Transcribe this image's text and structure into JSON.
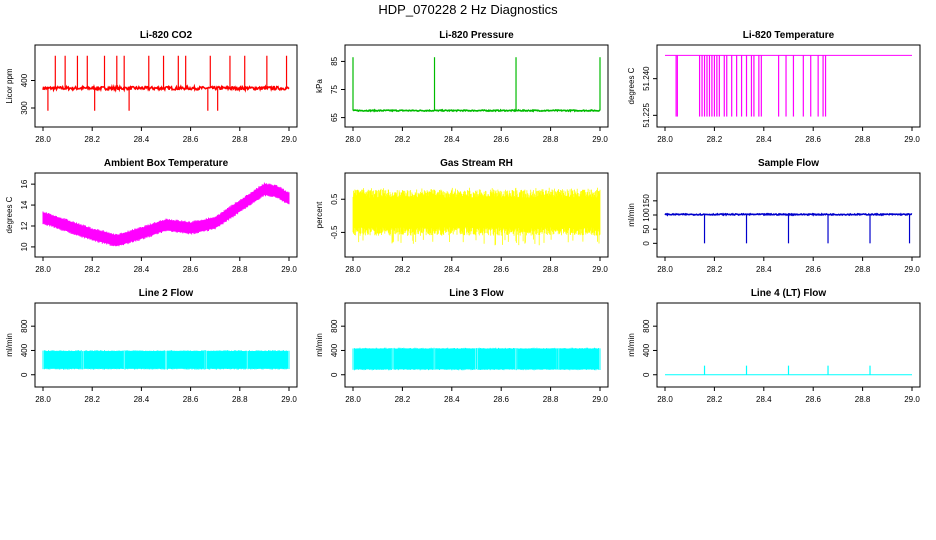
{
  "title": "HDP_070228 2 Hz Diagnostics",
  "colors": {
    "co2": "#ff0000",
    "pressure": "#00bb00",
    "temperature": "#ff00ff",
    "ambient": "#ff00ff",
    "rh": "#ffff00",
    "sample_flow": "#0000cc",
    "line2": "#00ffff",
    "line3": "#00ffff",
    "line4": "#00ffff"
  },
  "chart_data": [
    {
      "id": "co2",
      "type": "line",
      "title": "Li-820 CO2",
      "xlabel": "",
      "ylabel": "Licor ppm",
      "xlim": [
        28.0,
        29.0
      ],
      "ylim": [
        260,
        500
      ],
      "x_ticks": [
        "28.0",
        "28.2",
        "28.4",
        "28.6",
        "28.8",
        "29.0"
      ],
      "y_ticks": [
        "300",
        "400"
      ],
      "y_tick_values": [
        300,
        400
      ],
      "series": [
        {
          "name": "CO2",
          "baseline": 372,
          "noise": 6,
          "spikes_up_at": [
            28.05,
            28.09,
            28.14,
            28.18,
            28.25,
            28.3,
            28.33,
            28.43,
            28.49,
            28.55,
            28.58,
            28.68,
            28.76,
            28.82,
            28.91,
            28.99
          ],
          "spike_up_value": 490,
          "spikes_down_at": [
            28.02,
            28.21,
            28.35,
            28.67,
            28.71
          ],
          "spike_down_value": 290
        }
      ]
    },
    {
      "id": "pressure",
      "type": "line",
      "title": "Li-820 Pressure",
      "xlabel": "",
      "ylabel": "kPa",
      "xlim": [
        28.0,
        29.0
      ],
      "ylim": [
        64.5,
        88
      ],
      "x_ticks": [
        "28.0",
        "28.2",
        "28.4",
        "28.6",
        "28.8",
        "29.0"
      ],
      "y_ticks": [
        "65",
        "75",
        "85"
      ],
      "y_tick_values": [
        65,
        75,
        85
      ],
      "series": [
        {
          "name": "Pressure",
          "baseline": 67.5,
          "noise": 0.2,
          "spikes_up_at": [
            28.0,
            28.33,
            28.66,
            29.0
          ],
          "spike_up_value": 86.5
        }
      ]
    },
    {
      "id": "temperature",
      "type": "line",
      "title": "Li-820 Temperature",
      "xlabel": "",
      "ylabel": "degrees C",
      "xlim": [
        28.0,
        29.0
      ],
      "ylim": [
        51.2235,
        51.2505
      ],
      "x_ticks": [
        "28.0",
        "28.2",
        "28.4",
        "28.6",
        "28.8",
        "29.0"
      ],
      "y_ticks": [
        "51.225",
        "51.240"
      ],
      "y_tick_values": [
        51.225,
        51.24
      ],
      "series": [
        {
          "name": "Temperature",
          "baseline": 51.2495,
          "noise": 0,
          "spikes_down_at": [
            28.045,
            28.05,
            28.14,
            28.15,
            28.16,
            28.17,
            28.18,
            28.19,
            28.2,
            28.21,
            28.22,
            28.24,
            28.25,
            28.27,
            28.29,
            28.31,
            28.33,
            28.35,
            28.36,
            28.38,
            28.39,
            28.46,
            28.49,
            28.52,
            28.56,
            28.59,
            28.62,
            28.64,
            28.65
          ],
          "spike_down_value": 51.2245
        }
      ]
    },
    {
      "id": "ambient",
      "type": "line",
      "title": "Ambient Box Temperature",
      "xlabel": "",
      "ylabel": "degrees C",
      "xlim": [
        28.0,
        29.0
      ],
      "ylim": [
        9.8,
        16.3
      ],
      "x_ticks": [
        "28.0",
        "28.2",
        "28.4",
        "28.6",
        "28.8",
        "29.0"
      ],
      "y_ticks": [
        "10",
        "12",
        "14",
        "16"
      ],
      "y_tick_values": [
        10,
        12,
        14,
        16
      ],
      "series": [
        {
          "name": "Ambient",
          "band_width": 1.0,
          "x": [
            28.0,
            28.1,
            28.2,
            28.3,
            28.4,
            28.5,
            28.6,
            28.7,
            28.8,
            28.9,
            28.95,
            29.0
          ],
          "y": [
            12.8,
            12.0,
            11.2,
            10.6,
            11.3,
            12.1,
            11.8,
            12.3,
            13.9,
            15.5,
            15.3,
            14.6
          ]
        }
      ]
    },
    {
      "id": "rh",
      "type": "line",
      "title": "Gas Stream RH",
      "xlabel": "",
      "ylabel": "percent",
      "xlim": [
        28.0,
        29.0
      ],
      "ylim": [
        -1.0,
        1.05
      ],
      "x_ticks": [
        "28.0",
        "28.2",
        "28.4",
        "28.6",
        "28.8",
        "29.0"
      ],
      "y_ticks": [
        "-0.5",
        "0.5"
      ],
      "y_tick_values": [
        -0.5,
        0.5
      ],
      "series": [
        {
          "name": "RH",
          "dense_low": -0.35,
          "dense_high": 0.55,
          "extreme_low": -0.9,
          "extreme_high": 0.85
        }
      ]
    },
    {
      "id": "sample_flow",
      "type": "line",
      "title": "Sample Flow",
      "xlabel": "",
      "ylabel": "ml/min",
      "xlim": [
        28.0,
        29.0
      ],
      "ylim": [
        -20,
        220
      ],
      "x_ticks": [
        "28.0",
        "28.2",
        "28.4",
        "28.6",
        "28.8",
        "29.0"
      ],
      "y_ticks": [
        "0",
        "50",
        "100",
        "150"
      ],
      "y_tick_values": [
        0,
        50,
        100,
        150
      ],
      "series": [
        {
          "name": "Sample Flow",
          "baseline": 102,
          "noise": 2,
          "spikes_down_at": [
            28.16,
            28.33,
            28.5,
            28.66,
            28.83,
            28.99
          ],
          "spike_down_value": 0
        }
      ]
    },
    {
      "id": "line2",
      "type": "area",
      "title": "Line 2 Flow",
      "xlabel": "",
      "ylabel": "ml/min",
      "xlim": [
        28.0,
        29.0
      ],
      "ylim": [
        -70,
        1050
      ],
      "x_ticks": [
        "28.0",
        "28.2",
        "28.4",
        "28.6",
        "28.8",
        "29.0"
      ],
      "y_ticks": [
        "0",
        "400",
        "800"
      ],
      "y_tick_values": [
        0,
        400,
        800
      ],
      "series": [
        {
          "name": "Line 2",
          "low": 100,
          "high": 390,
          "gaps_at": [
            28.0,
            28.16,
            28.33,
            28.5,
            28.66,
            28.83,
            29.0
          ]
        }
      ]
    },
    {
      "id": "line3",
      "type": "area",
      "title": "Line 3 Flow",
      "xlabel": "",
      "ylabel": "ml/min",
      "xlim": [
        28.0,
        29.0
      ],
      "ylim": [
        -70,
        1050
      ],
      "x_ticks": [
        "28.0",
        "28.2",
        "28.4",
        "28.6",
        "28.8",
        "29.0"
      ],
      "y_ticks": [
        "0",
        "400",
        "800"
      ],
      "y_tick_values": [
        0,
        400,
        800
      ],
      "series": [
        {
          "name": "Line 3",
          "low": 90,
          "high": 430,
          "gaps_at": [
            28.0,
            28.16,
            28.33,
            28.5,
            28.66,
            28.83,
            29.0
          ]
        }
      ]
    },
    {
      "id": "line4",
      "type": "line",
      "title": "Line 4 (LT) Flow",
      "xlabel": "",
      "ylabel": "ml/min",
      "xlim": [
        28.0,
        29.0
      ],
      "ylim": [
        -70,
        1050
      ],
      "x_ticks": [
        "28.0",
        "28.2",
        "28.4",
        "28.6",
        "28.8",
        "29.0"
      ],
      "y_ticks": [
        "0",
        "400",
        "800"
      ],
      "y_tick_values": [
        0,
        400,
        800
      ],
      "series": [
        {
          "name": "Line 4",
          "baseline": 0,
          "noise": 0,
          "spikes_up_at": [
            28.16,
            28.33,
            28.5,
            28.66,
            28.83
          ],
          "spike_up_value": 150
        }
      ]
    }
  ]
}
